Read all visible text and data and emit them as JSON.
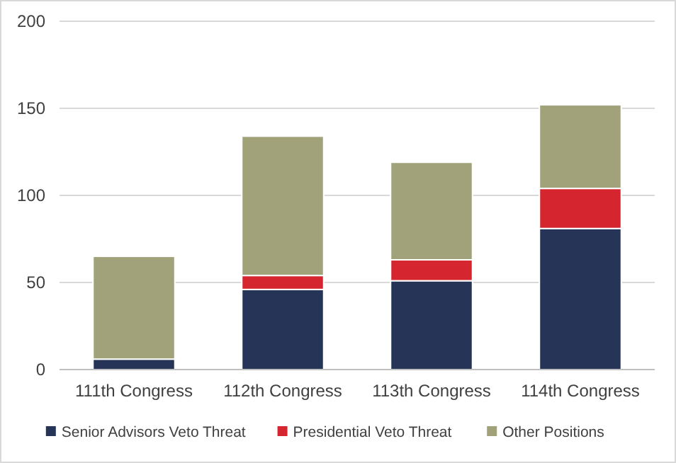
{
  "chart_data": {
    "type": "bar",
    "stacked": true,
    "categories": [
      "111th Congress",
      "112th Congress",
      "113th Congress",
      "114th Congress"
    ],
    "series": [
      {
        "name": "Senior Advisors Veto Threat",
        "color": "#263557",
        "values": [
          6,
          46,
          51,
          81
        ]
      },
      {
        "name": "Presidential Veto Threat",
        "color": "#d5262f",
        "values": [
          null,
          8,
          12,
          23
        ]
      },
      {
        "name": "Other Positions",
        "color": "#a1a279",
        "values": [
          59,
          80,
          56,
          48
        ]
      }
    ],
    "ylim": [
      0,
      200
    ],
    "yticks": [
      0,
      50,
      100,
      150,
      200
    ],
    "grid": "y",
    "legend": "bottom"
  }
}
